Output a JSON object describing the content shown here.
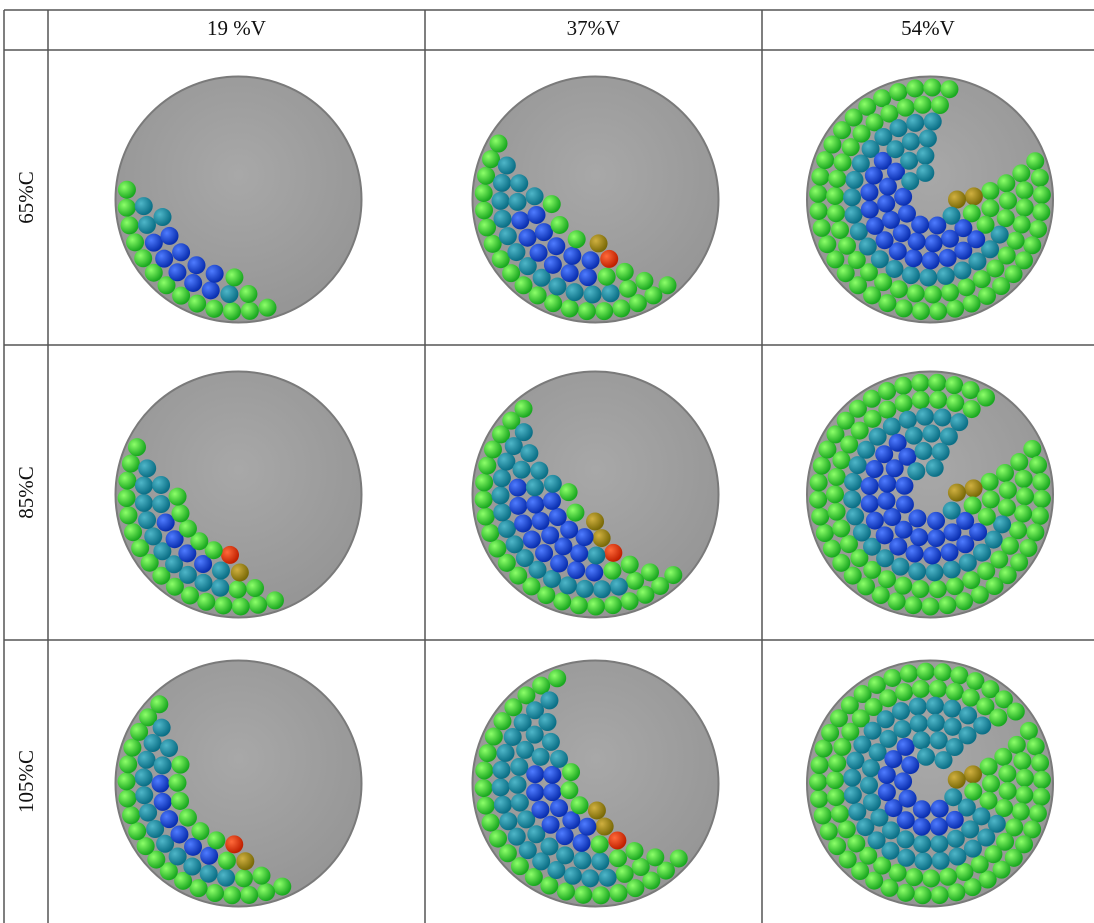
{
  "table": {
    "columns": [
      "19 %V",
      "37%V",
      "54%V"
    ],
    "rows": [
      "65%C",
      "85%C",
      "105%C"
    ]
  }
}
